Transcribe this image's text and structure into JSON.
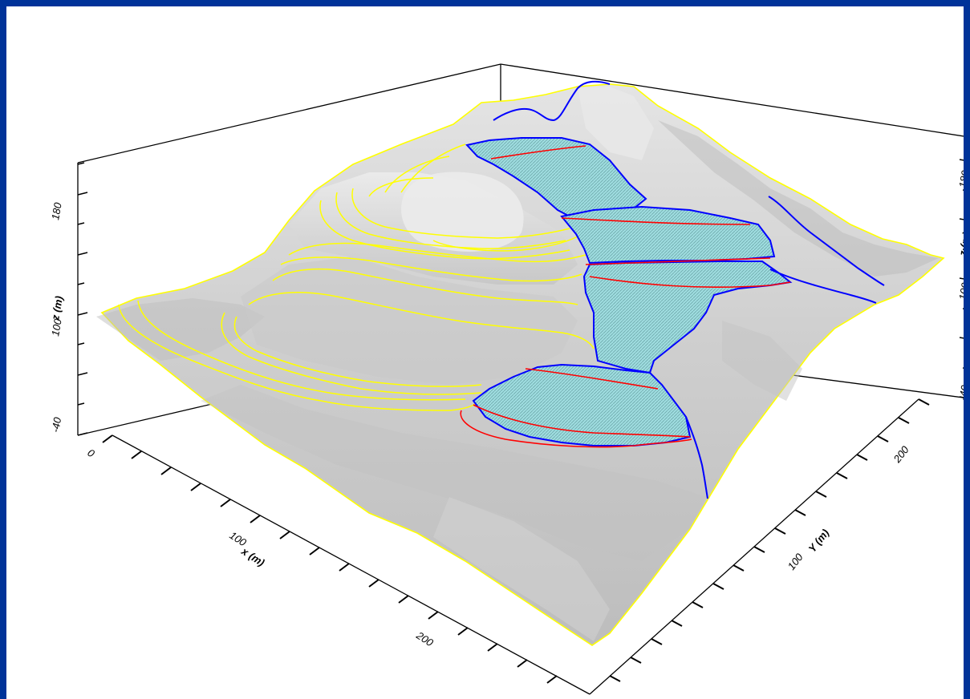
{
  "chart_data": {
    "type": "surface-3d",
    "title": "",
    "colors": {
      "background": "#003399",
      "surface": "#d0d0d0",
      "contour": "#ffff00",
      "pit_outline": "#ff0000",
      "stream": "#0000ff",
      "fill": "#9fdde0"
    },
    "axes": {
      "x": {
        "label": "x (m)",
        "ticks": [
          "0",
          "100",
          "200"
        ],
        "range": [
          0,
          260
        ]
      },
      "y": {
        "label": "Y (m)",
        "ticks": [
          "100",
          "200"
        ],
        "range": [
          0,
          250
        ]
      },
      "z": {
        "label": "z (m)",
        "ticks": [
          "-40",
          "100",
          "180"
        ]
      }
    }
  }
}
